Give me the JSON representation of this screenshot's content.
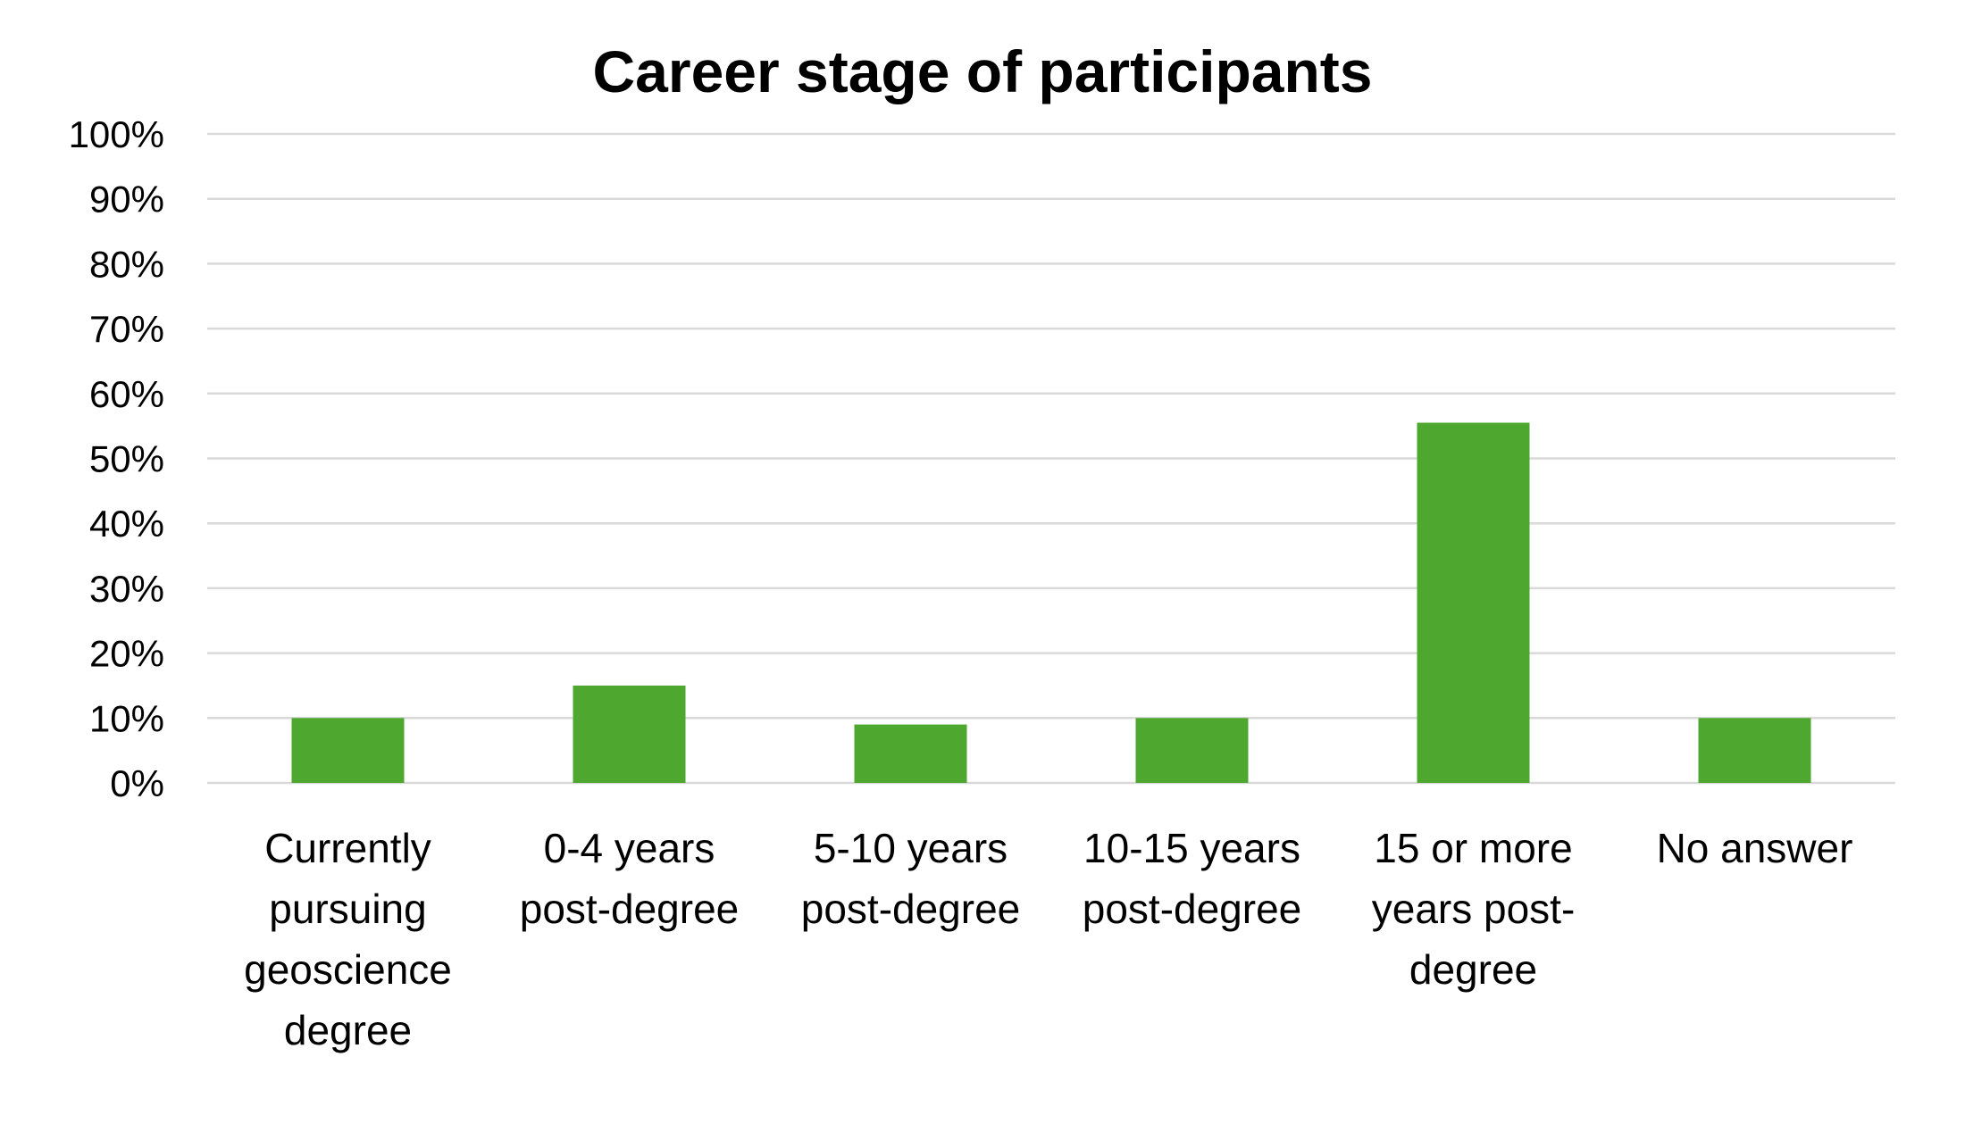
{
  "chart_data": {
    "type": "bar",
    "title": "Career stage of participants",
    "xlabel": "",
    "ylabel": "",
    "categories": [
      "Currently pursuing geoscience degree",
      "0-4 years post-degree",
      "5-10 years post-degree",
      "10-15 years post-degree",
      "15 or more years post-degree",
      "No answer"
    ],
    "category_label_lines": [
      [
        "Currently",
        "pursuing",
        "geoscience",
        "degree"
      ],
      [
        "0-4 years",
        "post-degree"
      ],
      [
        "5-10 years",
        "post-degree"
      ],
      [
        "10-15 years",
        "post-degree"
      ],
      [
        "15 or more",
        "years post-",
        "degree"
      ],
      [
        "No answer"
      ]
    ],
    "values": [
      10,
      15,
      9,
      10,
      55.5,
      10
    ],
    "unit": "%",
    "ylim": [
      0,
      100
    ],
    "yticks": [
      0,
      10,
      20,
      30,
      40,
      50,
      60,
      70,
      80,
      90,
      100
    ],
    "ytick_labels": [
      "0%",
      "10%",
      "20%",
      "30%",
      "40%",
      "50%",
      "60%",
      "70%",
      "80%",
      "90%",
      "100%"
    ],
    "grid": true,
    "legend": "none",
    "bar_color": "#4EA72E",
    "grid_color": "#D9D9D9"
  }
}
